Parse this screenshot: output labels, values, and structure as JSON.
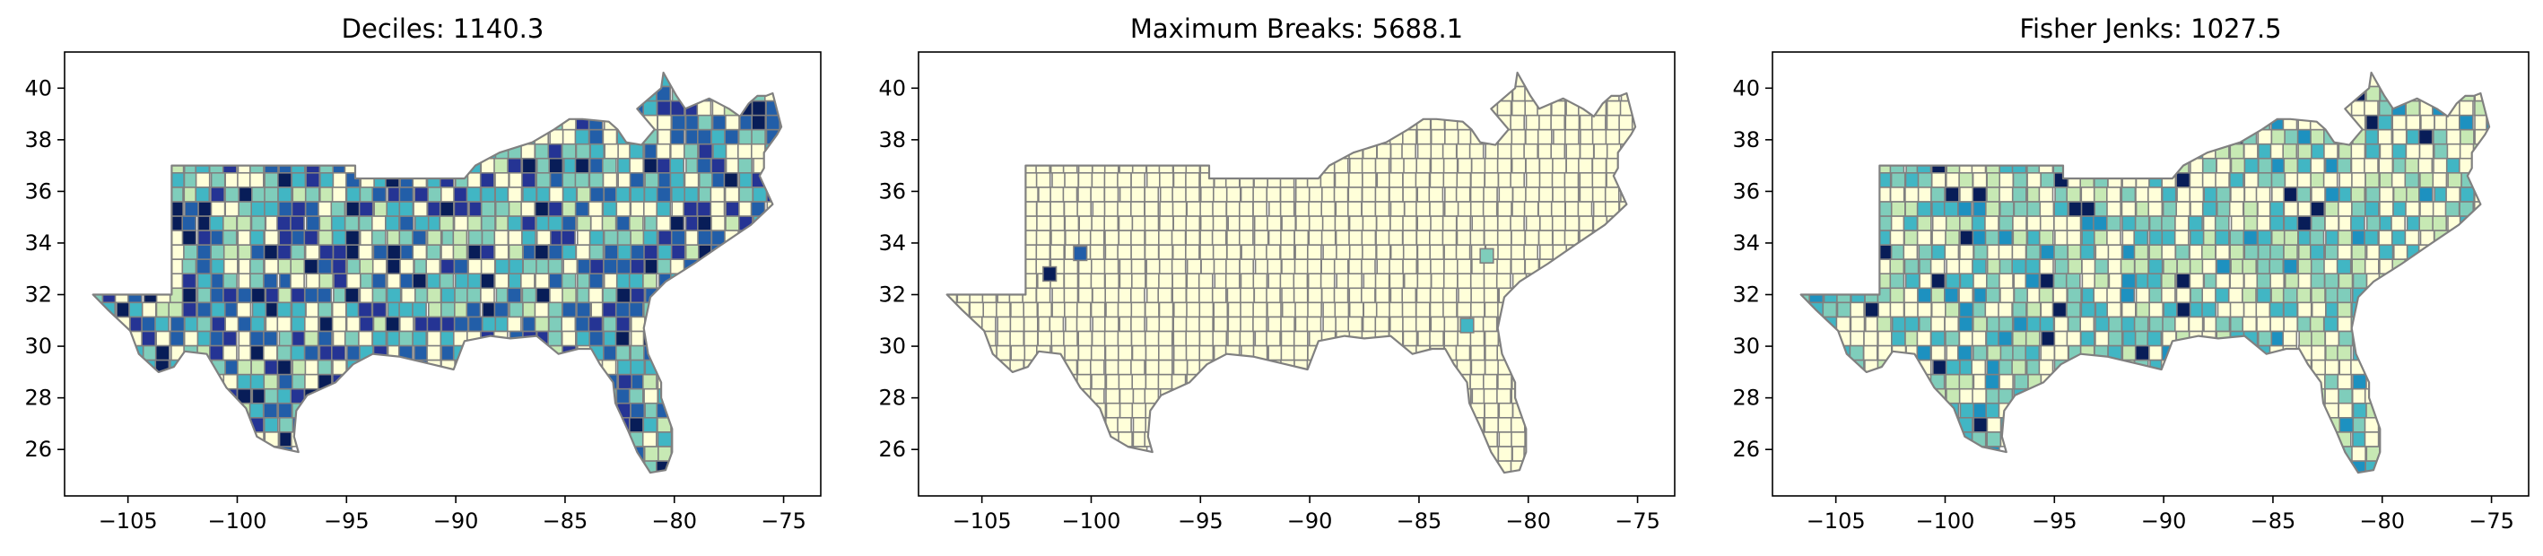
{
  "figure": {
    "subject": "US southern counties choropleth, three classification schemes",
    "colors": {
      "ylgnbu": [
        "#ffffd9",
        "#edf8b1",
        "#c7e9b4",
        "#7fcdbb",
        "#41b6c4",
        "#1d91c0",
        "#225ea8",
        "#253494",
        "#081d58"
      ],
      "county_edge": "#808080",
      "axes": "#000000",
      "background": "#ffffff"
    }
  },
  "chart_data": [
    {
      "type": "map",
      "title": "Deciles: 1140.3",
      "x_ticks": [
        "−105",
        "−100",
        "−95",
        "−90",
        "−85",
        "−80",
        "−75"
      ],
      "x_tick_values": [
        -105,
        -100,
        -95,
        -90,
        -85,
        -80,
        -75
      ],
      "y_ticks": [
        "26",
        "28",
        "30",
        "32",
        "34",
        "36",
        "38",
        "40"
      ],
      "y_tick_values": [
        26,
        28,
        30,
        32,
        34,
        36,
        38,
        40
      ],
      "xlim": [
        -107.9,
        -73.3
      ],
      "ylim": [
        24.2,
        41.4
      ],
      "classes": 10,
      "colormap": "YlGnBu",
      "dominant_class_colors": [
        "#ffffd9",
        "#c7e9b4",
        "#7fcdbb",
        "#41b6c4",
        "#225ea8",
        "#253494",
        "#081d58"
      ]
    },
    {
      "type": "map",
      "title": "Maximum Breaks: 5688.1",
      "x_ticks": [
        "−105",
        "−100",
        "−95",
        "−90",
        "−85",
        "−80",
        "−75"
      ],
      "x_tick_values": [
        -105,
        -100,
        -95,
        -90,
        -85,
        -80,
        -75
      ],
      "y_ticks": [
        "26",
        "28",
        "30",
        "32",
        "34",
        "36",
        "38",
        "40"
      ],
      "y_tick_values": [
        26,
        28,
        30,
        32,
        34,
        36,
        38,
        40
      ],
      "xlim": [
        -107.9,
        -73.3
      ],
      "ylim": [
        24.2,
        41.4
      ],
      "classes": 5,
      "colormap": "YlGnBu",
      "dominant_class_colors": [
        "#ffffd9"
      ],
      "highlighted_counties": [
        {
          "lon": -100.5,
          "lat": 33.6,
          "color": "#225ea8"
        },
        {
          "lon": -101.9,
          "lat": 32.8,
          "color": "#081d58"
        },
        {
          "lon": -82.8,
          "lat": 30.8,
          "color": "#41b6c4"
        },
        {
          "lon": -81.9,
          "lat": 33.5,
          "color": "#7fcdbb"
        }
      ]
    },
    {
      "type": "map",
      "title": "Fisher Jenks: 1027.5",
      "x_ticks": [
        "−105",
        "−100",
        "−95",
        "−90",
        "−85",
        "−80",
        "−75"
      ],
      "x_tick_values": [
        -105,
        -100,
        -95,
        -90,
        -85,
        -80,
        -75
      ],
      "y_ticks": [
        "26",
        "28",
        "30",
        "32",
        "34",
        "36",
        "38",
        "40"
      ],
      "y_tick_values": [
        26,
        28,
        30,
        32,
        34,
        36,
        38,
        40
      ],
      "xlim": [
        -107.9,
        -73.3
      ],
      "ylim": [
        24.2,
        41.4
      ],
      "classes": 5,
      "colormap": "YlGnBu",
      "dominant_class_colors": [
        "#ffffd9",
        "#c7e9b4",
        "#7fcdbb",
        "#41b6c4",
        "#1d91c0",
        "#081d58"
      ]
    }
  ]
}
